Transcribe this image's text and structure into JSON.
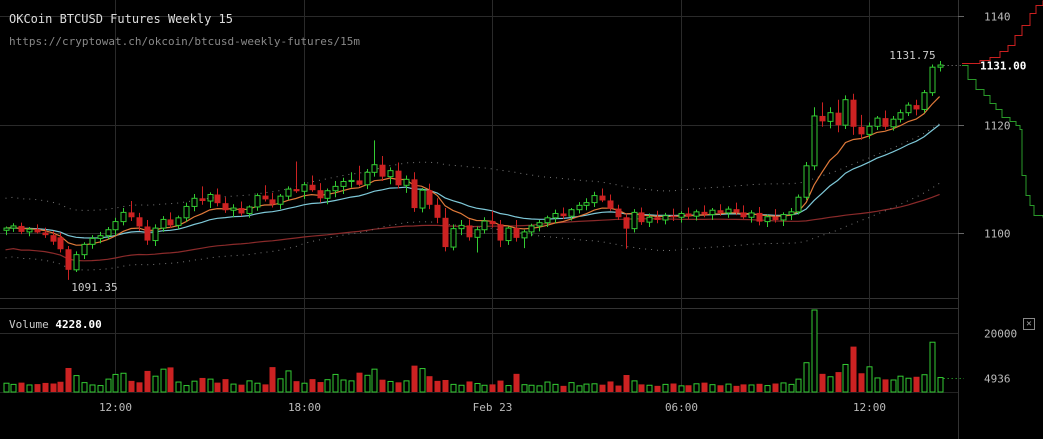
{
  "header": {
    "title": "OKCoin BTCUSD Futures Weekly 15",
    "url": "https://cryptowat.ch/okcoin/btcusd-weekly-futures/15m"
  },
  "volume_panel": {
    "label": "Volume",
    "value": "4228.00",
    "close_icon": "close-icon"
  },
  "price_axis": {
    "ticks": [
      "1140",
      "1120",
      "1100"
    ],
    "last_price": "1131.00"
  },
  "volume_axis": {
    "ticks": [
      "20000"
    ],
    "last_volume": "4936"
  },
  "time_axis": {
    "ticks": [
      "12:00",
      "18:00",
      "Feb 23",
      "06:00",
      "12:00"
    ]
  },
  "annotations": {
    "high": "1131.75",
    "low": "1091.35"
  },
  "colors": {
    "background": "#000000",
    "up": "#33cc33",
    "down": "#cc2222",
    "ema_fast": "#e07a3a",
    "ema_slow": "#7ec8d8",
    "sma_long": "#8a2a2a",
    "grid": "#2a2a2a",
    "depth_bid": "#2a9a2a",
    "depth_ask": "#cc2020"
  },
  "chart_data": {
    "type": "candlestick",
    "interval": "15m",
    "ylim": [
      1088,
      1143
    ],
    "volume_ylim": [
      0,
      28000
    ],
    "time_ticks": [
      {
        "label": "12:00",
        "bar": 14
      },
      {
        "label": "18:00",
        "bar": 38
      },
      {
        "label": "Feb 23",
        "bar": 62
      },
      {
        "label": "06:00",
        "bar": 86
      },
      {
        "label": "12:00",
        "bar": 110
      }
    ],
    "candles": [
      [
        1100.5,
        1101.2,
        1099.6,
        1100.9,
        3000
      ],
      [
        1100.9,
        1101.8,
        1100.2,
        1101.3,
        2600
      ],
      [
        1101.3,
        1101.9,
        1099.8,
        1100.2,
        3200
      ],
      [
        1100.2,
        1101.1,
        1099.4,
        1100.7,
        2400
      ],
      [
        1100.7,
        1101.6,
        1099.9,
        1100.1,
        2700
      ],
      [
        1100.1,
        1101.0,
        1099.1,
        1099.6,
        3100
      ],
      [
        1099.6,
        1100.4,
        1097.8,
        1098.4,
        2900
      ],
      [
        1099.2,
        1100.1,
        1096.4,
        1097.0,
        3500
      ],
      [
        1097.0,
        1097.6,
        1091.35,
        1093.2,
        8200
      ],
      [
        1093.2,
        1096.6,
        1092.8,
        1096.0,
        5600
      ],
      [
        1096.0,
        1098.3,
        1095.2,
        1097.9,
        3200
      ],
      [
        1097.9,
        1099.6,
        1097.1,
        1099.0,
        2400
      ],
      [
        1099.0,
        1100.2,
        1098.1,
        1099.5,
        2200
      ],
      [
        1099.5,
        1101.1,
        1098.8,
        1100.6,
        4400
      ],
      [
        1100.6,
        1102.8,
        1099.6,
        1102.1,
        6000
      ],
      [
        1102.1,
        1104.6,
        1101.4,
        1103.8,
        6400
      ],
      [
        1103.8,
        1105.9,
        1102.2,
        1102.9,
        3800
      ],
      [
        1102.9,
        1103.7,
        1100.4,
        1101.2,
        3300
      ],
      [
        1101.2,
        1102.4,
        1097.8,
        1098.6,
        7200
      ],
      [
        1098.6,
        1101.6,
        1097.6,
        1100.9,
        5400
      ],
      [
        1100.9,
        1103.1,
        1100.2,
        1102.5,
        7800
      ],
      [
        1102.5,
        1103.8,
        1100.9,
        1101.4,
        8400
      ],
      [
        1101.4,
        1103.2,
        1100.7,
        1102.8,
        3400
      ],
      [
        1102.8,
        1105.6,
        1102.1,
        1104.9,
        2200
      ],
      [
        1104.9,
        1107.2,
        1104.0,
        1106.4,
        3700
      ],
      [
        1106.4,
        1108.6,
        1105.2,
        1105.9,
        4800
      ],
      [
        1105.9,
        1107.5,
        1104.6,
        1107.1,
        4400
      ],
      [
        1107.1,
        1108.2,
        1104.9,
        1105.5,
        3200
      ],
      [
        1105.5,
        1106.6,
        1103.7,
        1104.2,
        4400
      ],
      [
        1104.2,
        1105.3,
        1102.9,
        1104.6,
        2700
      ],
      [
        1104.6,
        1105.8,
        1103.1,
        1103.6,
        2500
      ],
      [
        1103.6,
        1105.1,
        1102.8,
        1104.8,
        3800
      ],
      [
        1104.8,
        1107.3,
        1104.1,
        1106.9,
        3000
      ],
      [
        1106.9,
        1108.8,
        1105.8,
        1106.2,
        2600
      ],
      [
        1106.2,
        1107.4,
        1104.7,
        1105.3,
        8500
      ],
      [
        1105.3,
        1107.2,
        1104.4,
        1106.8,
        4500
      ],
      [
        1106.8,
        1108.6,
        1106.1,
        1108.1,
        7200
      ],
      [
        1108.1,
        1113.2,
        1107.4,
        1107.7,
        3700
      ],
      [
        1107.7,
        1109.4,
        1106.3,
        1108.9,
        3000
      ],
      [
        1108.9,
        1110.6,
        1107.6,
        1107.9,
        4400
      ],
      [
        1107.9,
        1109.2,
        1105.6,
        1106.4,
        3400
      ],
      [
        1106.4,
        1108.2,
        1105.3,
        1107.8,
        4200
      ],
      [
        1107.8,
        1109.6,
        1106.6,
        1108.6,
        6000
      ],
      [
        1108.6,
        1110.2,
        1107.2,
        1109.5,
        4100
      ],
      [
        1109.5,
        1111.2,
        1108.4,
        1109.7,
        3800
      ],
      [
        1109.7,
        1112.4,
        1108.6,
        1108.9,
        6600
      ],
      [
        1108.9,
        1111.8,
        1108.1,
        1111.2,
        5700
      ],
      [
        1111.2,
        1117.1,
        1110.4,
        1112.6,
        7800
      ],
      [
        1112.6,
        1114.2,
        1109.6,
        1110.4,
        4200
      ],
      [
        1110.4,
        1112.1,
        1109.0,
        1111.5,
        3600
      ],
      [
        1111.5,
        1113.0,
        1108.2,
        1108.8,
        3300
      ],
      [
        1108.8,
        1110.6,
        1107.4,
        1109.9,
        3800
      ],
      [
        1109.9,
        1111.2,
        1103.9,
        1104.6,
        9000
      ],
      [
        1104.6,
        1108.3,
        1103.8,
        1107.9,
        8000
      ],
      [
        1107.9,
        1109.1,
        1104.4,
        1105.2,
        5400
      ],
      [
        1105.2,
        1106.4,
        1101.8,
        1102.8,
        3800
      ],
      [
        1102.8,
        1104.6,
        1096.6,
        1097.4,
        4100
      ],
      [
        1097.4,
        1101.6,
        1096.8,
        1100.8,
        2600
      ],
      [
        1100.8,
        1102.4,
        1099.6,
        1101.4,
        2300
      ],
      [
        1101.4,
        1102.5,
        1098.6,
        1099.2,
        3600
      ],
      [
        1099.2,
        1101.2,
        1096.4,
        1100.6,
        2900
      ],
      [
        1100.6,
        1102.9,
        1099.9,
        1102.2,
        2300
      ],
      [
        1102.2,
        1104.1,
        1101.0,
        1101.6,
        2600
      ],
      [
        1101.6,
        1102.4,
        1097.4,
        1098.6,
        3900
      ],
      [
        1098.6,
        1101.2,
        1097.8,
        1100.9,
        2200
      ],
      [
        1100.9,
        1102.4,
        1098.4,
        1099.1,
        6200
      ],
      [
        1099.1,
        1100.6,
        1097.2,
        1100.2,
        2500
      ],
      [
        1100.2,
        1101.7,
        1099.4,
        1101.3,
        2300
      ],
      [
        1101.3,
        1102.4,
        1100.3,
        1101.9,
        2100
      ],
      [
        1101.9,
        1103.2,
        1101.1,
        1102.8,
        3400
      ],
      [
        1102.8,
        1104.3,
        1101.8,
        1103.6,
        2600
      ],
      [
        1103.6,
        1104.7,
        1102.6,
        1103.1,
        2100
      ],
      [
        1103.1,
        1104.6,
        1102.3,
        1104.3,
        3200
      ],
      [
        1104.3,
        1105.7,
        1103.6,
        1105.1,
        2100
      ],
      [
        1105.1,
        1106.4,
        1104.2,
        1105.6,
        2700
      ],
      [
        1105.6,
        1107.6,
        1104.8,
        1106.9,
        2800
      ],
      [
        1106.9,
        1108.2,
        1105.7,
        1106.0,
        2500
      ],
      [
        1106.0,
        1107.1,
        1104.1,
        1104.5,
        3600
      ],
      [
        1104.5,
        1105.2,
        1102.4,
        1102.9,
        2200
      ],
      [
        1102.9,
        1103.6,
        1097.1,
        1100.8,
        5800
      ],
      [
        1100.8,
        1104.4,
        1100.1,
        1103.8,
        3800
      ],
      [
        1103.8,
        1104.7,
        1101.5,
        1102.0,
        2600
      ],
      [
        1102.0,
        1103.6,
        1101.1,
        1102.9,
        2300
      ],
      [
        1102.9,
        1104.1,
        1101.8,
        1102.4,
        2100
      ],
      [
        1102.4,
        1103.7,
        1101.6,
        1103.2,
        2600
      ],
      [
        1103.2,
        1104.5,
        1102.2,
        1102.9,
        2900
      ],
      [
        1102.9,
        1104.0,
        1101.9,
        1103.6,
        2100
      ],
      [
        1103.6,
        1104.7,
        1102.6,
        1103.1,
        2300
      ],
      [
        1103.1,
        1104.3,
        1102.3,
        1103.9,
        2800
      ],
      [
        1103.9,
        1105.1,
        1102.9,
        1103.4,
        3200
      ],
      [
        1103.4,
        1104.6,
        1102.4,
        1104.2,
        2500
      ],
      [
        1104.2,
        1105.3,
        1103.2,
        1103.7,
        2300
      ],
      [
        1103.7,
        1104.9,
        1102.8,
        1104.4,
        2700
      ],
      [
        1104.4,
        1105.6,
        1103.3,
        1103.8,
        2100
      ],
      [
        1103.8,
        1105.1,
        1102.6,
        1102.9,
        2600
      ],
      [
        1102.9,
        1104.2,
        1101.9,
        1103.7,
        2400
      ],
      [
        1103.7,
        1104.8,
        1101.4,
        1102.1,
        2800
      ],
      [
        1102.1,
        1103.4,
        1101.1,
        1103.0,
        2200
      ],
      [
        1103.0,
        1104.4,
        1101.9,
        1102.4,
        2900
      ],
      [
        1102.4,
        1103.8,
        1101.3,
        1103.4,
        3100
      ],
      [
        1103.4,
        1104.6,
        1102.4,
        1103.9,
        2600
      ],
      [
        1103.9,
        1107.1,
        1103.4,
        1106.6,
        4400
      ],
      [
        1106.6,
        1113.1,
        1106.1,
        1112.4,
        10000
      ],
      [
        1112.4,
        1123.2,
        1111.6,
        1121.6,
        28000
      ],
      [
        1121.6,
        1124.1,
        1119.6,
        1120.6,
        6200
      ],
      [
        1120.6,
        1123.2,
        1119.3,
        1122.2,
        5200
      ],
      [
        1122.2,
        1124.6,
        1118.6,
        1119.9,
        6800
      ],
      [
        1119.9,
        1125.4,
        1119.2,
        1124.6,
        9400
      ],
      [
        1124.6,
        1125.7,
        1118.1,
        1119.6,
        15500
      ],
      [
        1119.6,
        1121.8,
        1117.2,
        1118.2,
        6400
      ],
      [
        1118.2,
        1120.4,
        1117.4,
        1119.7,
        8600
      ],
      [
        1119.7,
        1121.6,
        1119.0,
        1121.2,
        4800
      ],
      [
        1121.2,
        1122.6,
        1119.1,
        1119.6,
        4300
      ],
      [
        1119.6,
        1121.6,
        1118.9,
        1121.0,
        4100
      ],
      [
        1121.0,
        1122.8,
        1120.4,
        1122.2,
        5400
      ],
      [
        1122.2,
        1124.1,
        1121.6,
        1123.6,
        4700
      ],
      [
        1123.6,
        1124.6,
        1121.7,
        1122.8,
        5200
      ],
      [
        1122.8,
        1126.4,
        1122.2,
        1125.9,
        5900
      ],
      [
        1125.9,
        1131.1,
        1125.3,
        1130.6,
        17000
      ],
      [
        1130.6,
        1131.75,
        1129.8,
        1131.0,
        4936
      ]
    ]
  }
}
